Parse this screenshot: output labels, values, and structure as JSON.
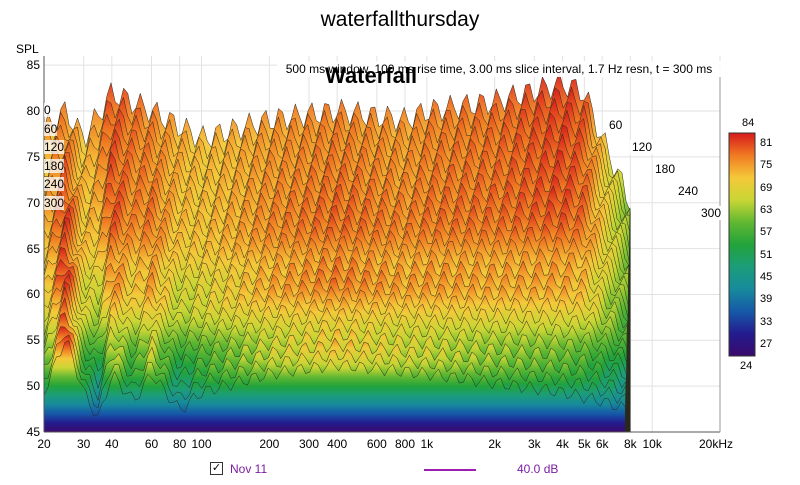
{
  "title": "waterfallthursday",
  "info_text": "500 ms window, 100 ms rise time, 3.00 ms slice interval, 1.7 Hz resn, t = 300 ms",
  "overlay_title": "Waterfall",
  "chart_data": {
    "type": "waterfall",
    "ylabel": "SPL",
    "y_ticks": [
      45,
      50,
      55,
      60,
      65,
      70,
      75,
      80,
      85
    ],
    "ylim": [
      45,
      86
    ],
    "xscale": "log",
    "xlim": [
      20,
      20000
    ],
    "x_ticks": [
      {
        "v": 20,
        "label": "20"
      },
      {
        "v": 30,
        "label": "30"
      },
      {
        "v": 40,
        "label": "40"
      },
      {
        "v": 60,
        "label": "60"
      },
      {
        "v": 80,
        "label": "80"
      },
      {
        "v": 100,
        "label": "100"
      },
      {
        "v": 200,
        "label": "200"
      },
      {
        "v": 300,
        "label": "300"
      },
      {
        "v": 400,
        "label": "400"
      },
      {
        "v": 600,
        "label": "600"
      },
      {
        "v": 800,
        "label": "800"
      },
      {
        "v": 1000,
        "label": "1k"
      },
      {
        "v": 2000,
        "label": "2k"
      },
      {
        "v": 3000,
        "label": "3k"
      },
      {
        "v": 4000,
        "label": "4k"
      },
      {
        "v": 5000,
        "label": "5k"
      },
      {
        "v": 6000,
        "label": "6k"
      },
      {
        "v": 8000,
        "label": "8k"
      },
      {
        "v": 10000,
        "label": "10k"
      },
      {
        "v": 20000,
        "label": "20kHz"
      }
    ],
    "time_labels_right": [
      "60",
      "120",
      "180",
      "240",
      "300"
    ],
    "time_labels_left": [
      "0",
      "60",
      "120",
      "180",
      "240",
      "300"
    ],
    "colorbar": {
      "min": 24,
      "max": 84,
      "ticks": [
        84,
        81,
        75,
        69,
        63,
        57,
        51,
        45,
        39,
        33,
        27,
        24
      ],
      "colors": [
        "#d7191c",
        "#f07a22",
        "#f5c83a",
        "#c9d635",
        "#62b832",
        "#22a33a",
        "#1c9d7a",
        "#178a9c",
        "#1659a8",
        "#231b8f",
        "#3a0a6b"
      ]
    },
    "front_slice_db": [
      {
        "f": 20,
        "db": 50
      },
      {
        "f": 25,
        "db": 56
      },
      {
        "f": 30,
        "db": 50
      },
      {
        "f": 35,
        "db": 47
      },
      {
        "f": 40,
        "db": 52
      },
      {
        "f": 50,
        "db": 49
      },
      {
        "f": 60,
        "db": 52
      },
      {
        "f": 80,
        "db": 48
      },
      {
        "f": 100,
        "db": 50
      },
      {
        "f": 200,
        "db": 52
      },
      {
        "f": 400,
        "db": 53
      },
      {
        "f": 1000,
        "db": 52
      },
      {
        "f": 2000,
        "db": 51
      },
      {
        "f": 4000,
        "db": 50
      },
      {
        "f": 6000,
        "db": 49
      },
      {
        "f": 8000,
        "db": 48
      }
    ],
    "back_slice_db": [
      {
        "f": 20,
        "db": 78
      },
      {
        "f": 25,
        "db": 80
      },
      {
        "f": 30,
        "db": 77
      },
      {
        "f": 40,
        "db": 82
      },
      {
        "f": 60,
        "db": 80
      },
      {
        "f": 100,
        "db": 77
      },
      {
        "f": 200,
        "db": 79
      },
      {
        "f": 400,
        "db": 80
      },
      {
        "f": 800,
        "db": 79
      },
      {
        "f": 1000,
        "db": 80
      },
      {
        "f": 2000,
        "db": 81
      },
      {
        "f": 4000,
        "db": 83
      },
      {
        "f": 5000,
        "db": 82
      },
      {
        "f": 6000,
        "db": 77
      },
      {
        "f": 8000,
        "db": 70
      }
    ]
  },
  "legend": {
    "checked_mark": "✓",
    "name": "Nov 11",
    "value": "40.0 dB",
    "line_color": "#9b1fb0"
  }
}
